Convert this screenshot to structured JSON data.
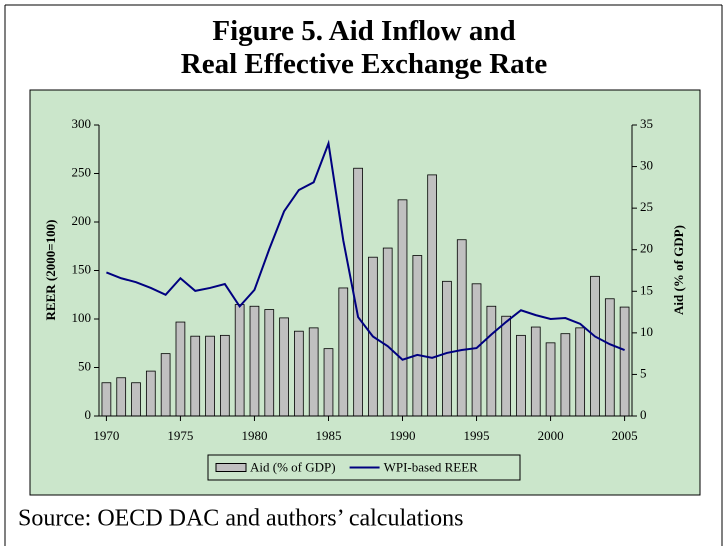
{
  "chart_data": {
    "type": "bar",
    "title": "Figure 5. Aid Inflow and Real Effective Exchange Rate",
    "y_label": "REER (2000=100)",
    "y2_label": "Aid (% of GDP)",
    "source": "Source: OECD DAC and authors’ calculations",
    "x": [
      1970,
      1971,
      1972,
      1973,
      1974,
      1975,
      1976,
      1977,
      1978,
      1979,
      1980,
      1981,
      1982,
      1983,
      1984,
      1985,
      1986,
      1987,
      1988,
      1989,
      1990,
      1991,
      1992,
      1993,
      1994,
      1995,
      1996,
      1997,
      1998,
      1999,
      2000,
      2001,
      2002,
      2003,
      2004,
      2005
    ],
    "xlim": [
      1969.5,
      2005.5
    ],
    "xticks": [
      1970,
      1975,
      1980,
      1985,
      1990,
      1995,
      2000,
      2005
    ],
    "ylim": [
      0,
      300
    ],
    "yticks": [
      0,
      50,
      100,
      150,
      200,
      250,
      300
    ],
    "y2lim": [
      0,
      35
    ],
    "y2ticks": [
      0,
      5,
      10,
      15,
      20,
      25,
      30,
      35
    ],
    "legend": "bottom",
    "series": [
      {
        "name": "Aid (% of GDP)",
        "type": "bar",
        "axis": "y2",
        "color": "#c0c0c0",
        "values": [
          4.0,
          4.6,
          4.0,
          5.4,
          7.5,
          11.3,
          9.6,
          9.6,
          9.7,
          13.4,
          13.2,
          12.8,
          11.8,
          10.2,
          10.6,
          8.1,
          15.4,
          29.8,
          19.1,
          20.2,
          26.0,
          19.3,
          29.0,
          16.2,
          21.2,
          15.9,
          13.2,
          12.0,
          9.7,
          10.7,
          8.8,
          9.9,
          10.6,
          16.8,
          14.1,
          13.1
        ]
      },
      {
        "name": "WPI-based REER",
        "type": "line",
        "axis": "y",
        "color": "#000080",
        "values": [
          148,
          142,
          138,
          132,
          125,
          142,
          129,
          132,
          136,
          113,
          130,
          172,
          211,
          233,
          241,
          281,
          181,
          102,
          82,
          72,
          58,
          63,
          60,
          65,
          68,
          70,
          84,
          97,
          109,
          104,
          100,
          101,
          95,
          82,
          74,
          68
        ]
      }
    ]
  }
}
